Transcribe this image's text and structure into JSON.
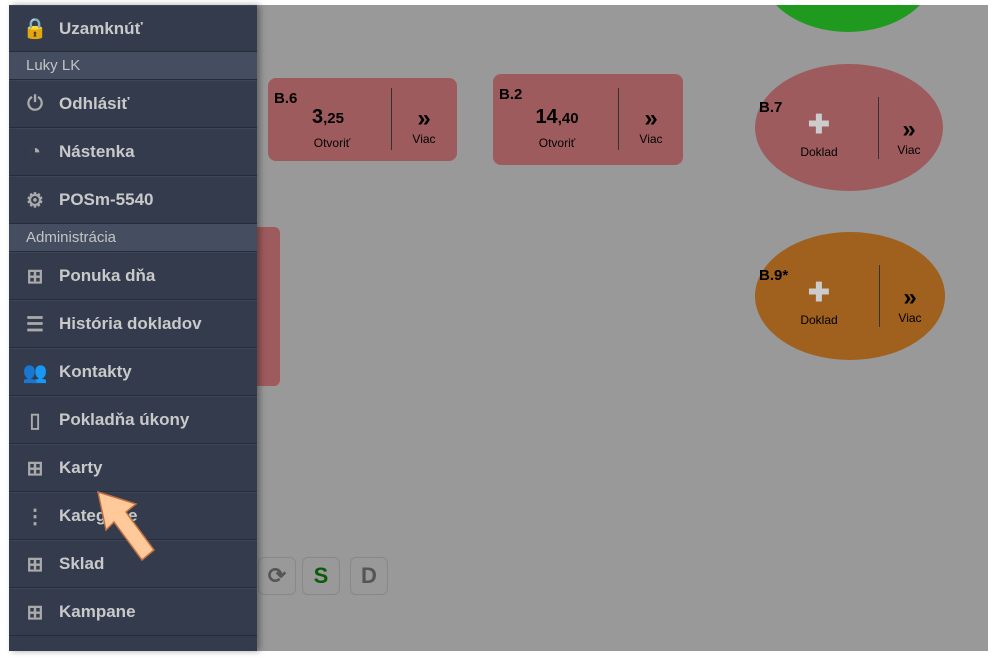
{
  "sidebar": {
    "lock": "Uzamknúť",
    "user_header": "Luky LK",
    "items_a": [
      {
        "label": "Odhlásiť",
        "icon": "power-icon"
      },
      {
        "label": "Nástenka",
        "icon": "dashboard-icon"
      },
      {
        "label": "POSm-5540",
        "icon": "gear-icon"
      }
    ],
    "admin_header": "Administrácia",
    "items_b": [
      {
        "label": "Ponuka dňa",
        "icon": "boxes-star-icon"
      },
      {
        "label": "História dokladov",
        "icon": "list-icon"
      },
      {
        "label": "Kontakty",
        "icon": "users-icon"
      },
      {
        "label": "Pokladňa úkony",
        "icon": "bars-icon"
      },
      {
        "label": "Karty",
        "icon": "boxes-icon"
      },
      {
        "label": "Kategórie",
        "icon": "tree-icon"
      },
      {
        "label": "Sklad",
        "icon": "boxes-icon"
      },
      {
        "label": "Kampane",
        "icon": "boxes-icon"
      }
    ]
  },
  "tables": [
    {
      "id": "B.6",
      "int": "3",
      "dec": ",25",
      "action": "Otvoriť",
      "more": "Viac",
      "color": "#9e5b5d"
    },
    {
      "id": "B.2",
      "int": "14",
      "dec": ",40",
      "action": "Otvoriť",
      "more": "Viac",
      "color": "#9e5b5d"
    },
    {
      "id": "B.7",
      "action": "Doklad",
      "more": "Viac",
      "color": "#9e5b5d"
    },
    {
      "id": "B.9*",
      "action": "Doklad",
      "more": "Viac",
      "color": "#a0601e"
    }
  ],
  "toolbar": {
    "refresh": "refresh-icon",
    "s": "S",
    "d": "D"
  },
  "chevrons": "»"
}
